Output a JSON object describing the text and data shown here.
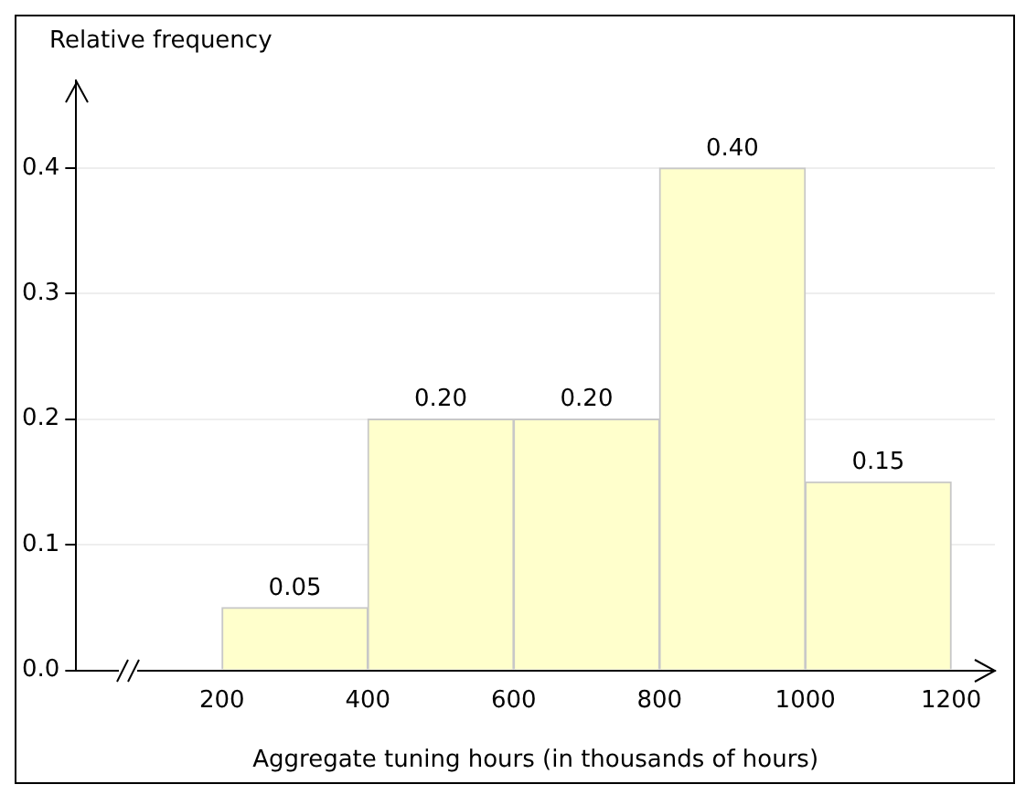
{
  "chart_data": {
    "type": "histogram",
    "ylabel": "Relative frequency",
    "xlabel": "Aggregate tuning hours (in thousands of hours)",
    "bins": [
      200,
      400,
      600,
      800,
      1000,
      1200
    ],
    "values": [
      0.05,
      0.2,
      0.2,
      0.4,
      0.15
    ],
    "value_labels": [
      "0.05",
      "0.20",
      "0.20",
      "0.40",
      "0.15"
    ],
    "color": "#ffffcc",
    "xlim": [
      0,
      1260
    ],
    "xticks": [
      200,
      400,
      600,
      800,
      1000,
      1200
    ],
    "ylim": [
      0,
      0.47
    ],
    "yticks": [
      {
        "value": 0,
        "label": "0.0"
      },
      {
        "value": 0.1,
        "label": "0.1"
      },
      {
        "value": 0.2,
        "label": "0.2"
      },
      {
        "value": 0.3,
        "label": "0.3"
      },
      {
        "value": 0.4,
        "label": "0.4"
      }
    ],
    "grid": "y",
    "legend": false
  }
}
